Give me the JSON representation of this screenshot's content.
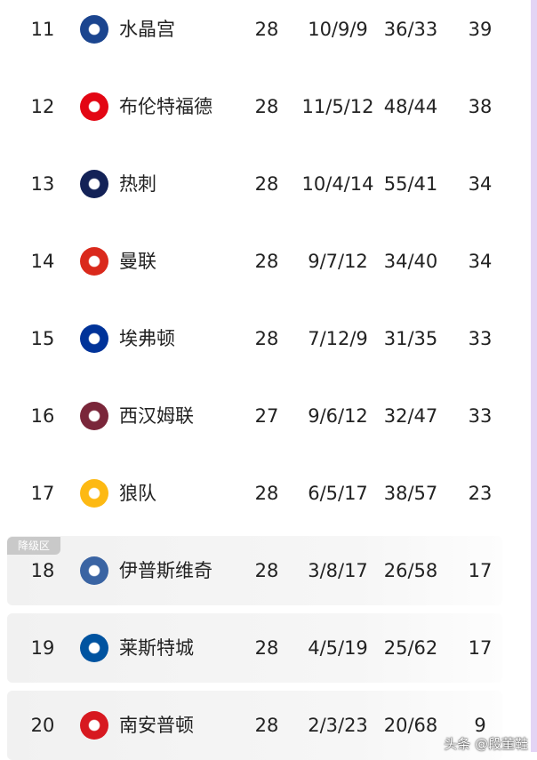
{
  "zone_label": "降级区",
  "watermark": "头条 @段董鞋",
  "rows": [
    {
      "rank": "11",
      "team": "水晶宫",
      "played": "28",
      "record": "10/9/9",
      "goals": "36/33",
      "points": "39",
      "logo_color": "#1b458f",
      "relegation": false
    },
    {
      "rank": "12",
      "team": "布伦特福德",
      "played": "28",
      "record": "11/5/12",
      "goals": "48/44",
      "points": "38",
      "logo_color": "#e30613",
      "relegation": false
    },
    {
      "rank": "13",
      "team": "热刺",
      "played": "28",
      "record": "10/4/14",
      "goals": "55/41",
      "points": "34",
      "logo_color": "#132257",
      "relegation": false
    },
    {
      "rank": "14",
      "team": "曼联",
      "played": "28",
      "record": "9/7/12",
      "goals": "34/40",
      "points": "34",
      "logo_color": "#da291c",
      "relegation": false
    },
    {
      "rank": "15",
      "team": "埃弗顿",
      "played": "28",
      "record": "7/12/9",
      "goals": "31/35",
      "points": "33",
      "logo_color": "#003399",
      "relegation": false
    },
    {
      "rank": "16",
      "team": "西汉姆联",
      "played": "27",
      "record": "9/6/12",
      "goals": "32/47",
      "points": "33",
      "logo_color": "#7a263a",
      "relegation": false
    },
    {
      "rank": "17",
      "team": "狼队",
      "played": "28",
      "record": "6/5/17",
      "goals": "38/57",
      "points": "23",
      "logo_color": "#fdb913",
      "relegation": false
    },
    {
      "rank": "18",
      "team": "伊普斯维奇",
      "played": "28",
      "record": "3/8/17",
      "goals": "26/58",
      "points": "17",
      "logo_color": "#3a64a3",
      "relegation": true
    },
    {
      "rank": "19",
      "team": "莱斯特城",
      "played": "28",
      "record": "4/5/19",
      "goals": "25/62",
      "points": "17",
      "logo_color": "#0053a0",
      "relegation": true
    },
    {
      "rank": "20",
      "team": "南安普顿",
      "played": "28",
      "record": "2/3/23",
      "goals": "20/68",
      "points": "9",
      "logo_color": "#d71920",
      "relegation": true
    }
  ]
}
